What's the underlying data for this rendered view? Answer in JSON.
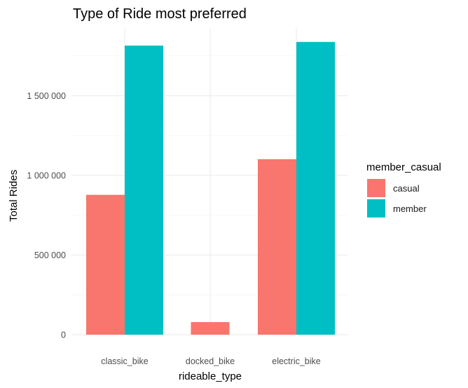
{
  "chart_data": {
    "type": "bar",
    "title": "Type of Ride most preferred",
    "xlabel": "rideable_type",
    "ylabel": "Total Rides",
    "categories": [
      "classic_bike",
      "docked_bike",
      "electric_bike"
    ],
    "series": [
      {
        "name": "casual",
        "color": "#F8766D",
        "values": [
          878000,
          79000,
          1102000
        ]
      },
      {
        "name": "member",
        "color": "#00BFC4",
        "values": [
          1815000,
          null,
          1838000
        ]
      }
    ],
    "ylim": [
      0,
      1900000
    ],
    "yticks": [
      0,
      500000,
      1000000,
      1500000
    ],
    "ytick_labels": [
      "0",
      "500 000",
      "1 000 000",
      "1 500 000"
    ],
    "legend": {
      "title": "member_casual",
      "position": "right"
    },
    "grid": true
  }
}
